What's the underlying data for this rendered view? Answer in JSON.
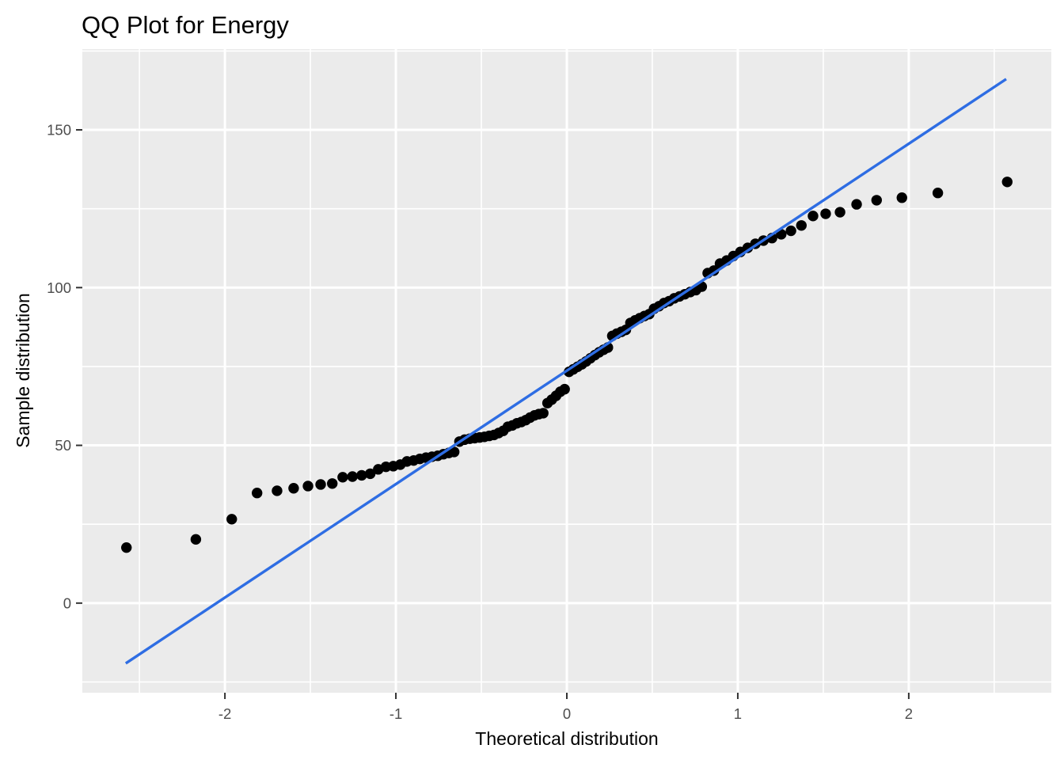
{
  "chart_data": {
    "type": "scatter",
    "variant": "qq-plot",
    "title": "QQ Plot for Energy",
    "xlabel": "Theoretical distribution",
    "ylabel": "Sample distribution",
    "xlim": [
      -2.834,
      2.834
    ],
    "ylim": [
      -28.4,
      175.6
    ],
    "grid": true,
    "legend": false,
    "x_major_ticks": [
      -2,
      -1,
      0,
      1,
      2
    ],
    "x_tick_labels": [
      "-2",
      "-1",
      "0",
      "1",
      "2"
    ],
    "x_minor_ticks": [
      -2.5,
      -1.5,
      -0.5,
      0.5,
      1.5,
      2.5
    ],
    "y_major_ticks": [
      0,
      50,
      100,
      150
    ],
    "y_tick_labels": [
      "0",
      "50",
      "100",
      "150"
    ],
    "y_minor_ticks": [
      -25,
      25,
      75,
      125,
      175
    ],
    "reference_line": {
      "x1": -2.58,
      "y1": -19.1,
      "x2": 2.57,
      "y2": 166.1,
      "slope": 35.9,
      "intercept": 73.6
    },
    "points": [
      [
        -2.576,
        17.6
      ],
      [
        -2.17,
        20.2
      ],
      [
        -1.96,
        26.6
      ],
      [
        -1.812,
        34.9
      ],
      [
        -1.695,
        35.6
      ],
      [
        -1.598,
        36.4
      ],
      [
        -1.514,
        37.1
      ],
      [
        -1.44,
        37.6
      ],
      [
        -1.372,
        37.9
      ],
      [
        -1.311,
        39.9
      ],
      [
        -1.254,
        40.1
      ],
      [
        -1.2,
        40.5
      ],
      [
        -1.15,
        41.0
      ],
      [
        -1.103,
        42.4
      ],
      [
        -1.058,
        43.2
      ],
      [
        -1.015,
        43.4
      ],
      [
        -0.974,
        43.9
      ],
      [
        -0.935,
        44.9
      ],
      [
        -0.896,
        45.2
      ],
      [
        -0.86,
        45.7
      ],
      [
        -0.824,
        46.1
      ],
      [
        -0.789,
        46.4
      ],
      [
        -0.755,
        46.7
      ],
      [
        -0.722,
        47.2
      ],
      [
        -0.69,
        47.6
      ],
      [
        -0.659,
        47.9
      ],
      [
        -0.628,
        51.2
      ],
      [
        -0.598,
        51.8
      ],
      [
        -0.568,
        52.1
      ],
      [
        -0.539,
        52.3
      ],
      [
        -0.51,
        52.5
      ],
      [
        -0.482,
        52.7
      ],
      [
        -0.454,
        53.0
      ],
      [
        -0.426,
        53.3
      ],
      [
        -0.399,
        53.9
      ],
      [
        -0.372,
        54.6
      ],
      [
        -0.345,
        55.9
      ],
      [
        -0.319,
        56.3
      ],
      [
        -0.292,
        57.0
      ],
      [
        -0.266,
        57.4
      ],
      [
        -0.24,
        58.0
      ],
      [
        -0.215,
        58.8
      ],
      [
        -0.189,
        59.5
      ],
      [
        -0.164,
        59.9
      ],
      [
        -0.138,
        60.2
      ],
      [
        -0.113,
        63.4
      ],
      [
        -0.088,
        64.5
      ],
      [
        -0.063,
        65.7
      ],
      [
        -0.038,
        67.0
      ],
      [
        -0.013,
        67.8
      ],
      [
        0.013,
        73.3
      ],
      [
        0.038,
        74.1
      ],
      [
        0.063,
        74.9
      ],
      [
        0.088,
        75.7
      ],
      [
        0.113,
        76.6
      ],
      [
        0.138,
        77.6
      ],
      [
        0.164,
        78.6
      ],
      [
        0.189,
        79.5
      ],
      [
        0.215,
        80.3
      ],
      [
        0.24,
        81.0
      ],
      [
        0.266,
        84.7
      ],
      [
        0.292,
        85.4
      ],
      [
        0.319,
        86.0
      ],
      [
        0.345,
        86.6
      ],
      [
        0.372,
        88.8
      ],
      [
        0.399,
        89.6
      ],
      [
        0.426,
        90.3
      ],
      [
        0.454,
        91.0
      ],
      [
        0.482,
        91.6
      ],
      [
        0.51,
        93.3
      ],
      [
        0.539,
        94.1
      ],
      [
        0.568,
        95.1
      ],
      [
        0.598,
        95.7
      ],
      [
        0.628,
        96.6
      ],
      [
        0.659,
        97.2
      ],
      [
        0.69,
        97.9
      ],
      [
        0.722,
        98.6
      ],
      [
        0.755,
        99.2
      ],
      [
        0.789,
        100.3
      ],
      [
        0.824,
        104.6
      ],
      [
        0.86,
        105.4
      ],
      [
        0.896,
        107.6
      ],
      [
        0.935,
        108.6
      ],
      [
        0.974,
        110.0
      ],
      [
        1.015,
        111.3
      ],
      [
        1.058,
        112.6
      ],
      [
        1.103,
        113.9
      ],
      [
        1.15,
        114.9
      ],
      [
        1.2,
        115.7
      ],
      [
        1.254,
        116.9
      ],
      [
        1.311,
        118.0
      ],
      [
        1.372,
        119.7
      ],
      [
        1.44,
        122.7
      ],
      [
        1.514,
        123.4
      ],
      [
        1.598,
        123.9
      ],
      [
        1.695,
        126.4
      ],
      [
        1.812,
        127.7
      ],
      [
        1.96,
        128.5
      ],
      [
        2.17,
        130.0
      ],
      [
        2.576,
        133.5
      ]
    ],
    "style": {
      "figure_bg": "#FFFFFF",
      "panel_bg": "#EBEBEB",
      "grid_color": "#FFFFFF",
      "point_color": "#000000",
      "line_color": "#2E6DE3",
      "tick_color": "#333333",
      "tick_label_color": "#4D4D4D",
      "axis_title_color": "#000000",
      "title_color": "#000000"
    }
  }
}
